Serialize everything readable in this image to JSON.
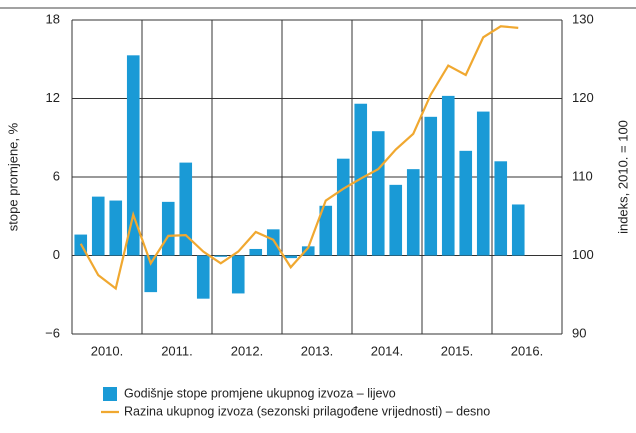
{
  "chart_data": {
    "type": "bar_line",
    "y_label": "stope promjene, %",
    "y2_label": "indeks, 2010. = 100",
    "groups": [
      "2010.",
      "2011.",
      "2012.",
      "2013.",
      "2014.",
      "2015.",
      "2016."
    ],
    "categories": [
      null,
      null,
      null,
      null,
      null,
      null,
      null,
      null,
      null,
      null,
      null,
      null,
      null,
      null,
      null,
      null,
      null,
      null,
      null,
      null,
      null,
      null,
      null,
      null,
      null,
      null
    ],
    "series": [
      {
        "name": "Godišnje stope promjene ukupnog izvoza – lijevo",
        "color": "#1a9ad6",
        "type": "bar",
        "values": [
          1.6,
          4.5,
          4.2,
          15.3,
          -2.8,
          4.1,
          7.1,
          -3.3,
          -0.1,
          -2.9,
          0.5,
          2.0,
          -0.2,
          0.7,
          3.8,
          7.4,
          11.6,
          9.5,
          5.4,
          6.6,
          10.6,
          12.2,
          8.0,
          11.0,
          7.2,
          3.9
        ]
      },
      {
        "name": "Razina ukupnog izvoza (sezonski prilagođene vrijednosti) – desno",
        "color": "#f0a830",
        "type": "line",
        "axis": "y2",
        "values": [
          101.5,
          97.5,
          95.8,
          105.2,
          99,
          102.5,
          102.6,
          100.5,
          99,
          100.5,
          103,
          102,
          98.5,
          101,
          107,
          108.5,
          109.8,
          111,
          113.5,
          115.5,
          120.5,
          124.2,
          123,
          127.8,
          129.2,
          129
        ]
      }
    ],
    "ylim": [
      -6,
      18
    ],
    "yticks": [
      {
        "value": -6,
        "label": "−6"
      },
      0,
      6,
      12,
      18
    ],
    "y2lim": [
      90,
      130
    ],
    "y2ticks": [
      90,
      100,
      110,
      120,
      130
    ],
    "grid": true
  }
}
